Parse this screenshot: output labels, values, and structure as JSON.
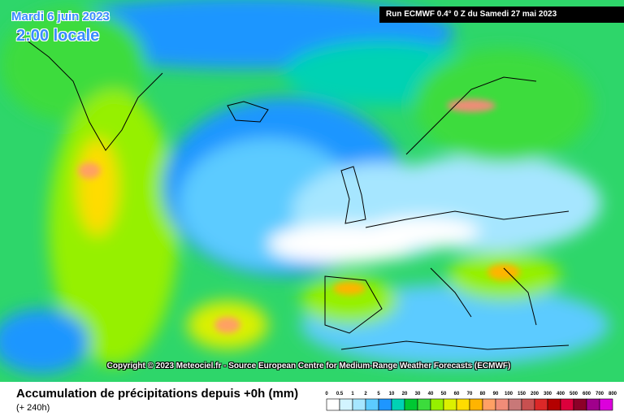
{
  "header": {
    "date": "Mardi 6 juin 2023",
    "time": "2:00 locale",
    "run": "Run ECMWF 0.4° 0 Z du Samedi 27 mai 2023"
  },
  "copyright": "Copyright © 2023 Meteociel.fr - Source European Centre for Medium-Range Weather Forecasts (ECMWF)",
  "footer": {
    "title": "Accumulation de précipitations depuis +0h (mm)",
    "subtitle": "(+ 240h)"
  },
  "legend": {
    "ticks": [
      0,
      0.5,
      1,
      2,
      5,
      10,
      20,
      30,
      40,
      50,
      60,
      70,
      80,
      90,
      100,
      150,
      200,
      300,
      400,
      500,
      600,
      700,
      800
    ],
    "colors": [
      "#ffffff",
      "#d2f4ff",
      "#a6e6ff",
      "#5ccbff",
      "#1e96ff",
      "#00d2b4",
      "#00c832",
      "#3cdc3c",
      "#96f000",
      "#dcf000",
      "#ffdc00",
      "#ffb400",
      "#ffa064",
      "#f08c78",
      "#c87878",
      "#c85050",
      "#dc2828",
      "#b40000",
      "#dc003c",
      "#8c0028",
      "#a0008c",
      "#dc00dc"
    ]
  }
}
